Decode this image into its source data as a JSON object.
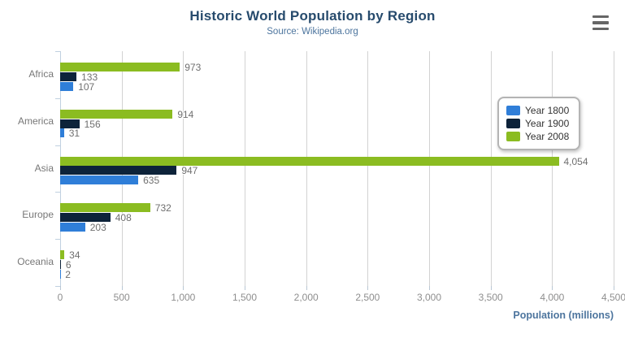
{
  "header": {
    "title": "Historic World Population by Region",
    "subtitle": "Source: Wikipedia.org"
  },
  "export_button": {
    "icon": "hamburger",
    "tooltip": "chart context menu"
  },
  "chart_data": {
    "type": "bar",
    "orientation": "horizontal",
    "title": "Historic World Population by Region",
    "subtitle": "Source: Wikipedia.org",
    "categories": [
      "Africa",
      "America",
      "Asia",
      "Europe",
      "Oceania"
    ],
    "series": [
      {
        "name": "Year 1800",
        "color": "#2f7ed8",
        "values": [
          107,
          31,
          635,
          203,
          2
        ]
      },
      {
        "name": "Year 1900",
        "color": "#0d233a",
        "values": [
          133,
          156,
          947,
          408,
          6
        ]
      },
      {
        "name": "Year 2008",
        "color": "#8bbc21",
        "values": [
          973,
          914,
          4054,
          732,
          34
        ]
      }
    ],
    "bar_visual_order_top_to_bottom": [
      "Year 2008",
      "Year 1900",
      "Year 1800"
    ],
    "data_labels_shown": true,
    "xlabel": "Population (millions)",
    "xlim": [
      0,
      4500
    ],
    "x_ticks": [
      0,
      500,
      1000,
      1500,
      2000,
      2500,
      3000,
      3500,
      4000,
      4500
    ],
    "x_tick_labels": [
      "0",
      "500",
      "1,000",
      "1,500",
      "2,000",
      "2,500",
      "3,000",
      "3,500",
      "4,000",
      "4,500"
    ],
    "grid": true,
    "legend_position": "right",
    "colors": {
      "grid_line": "#d2d2d2",
      "axis_line": "#c0d0e0",
      "title_text": "#274b6d",
      "subtitle_text": "#4d759e",
      "axis_title_text": "#4d759e",
      "tick_label_text": "#8e8e8e",
      "category_label_text": "#777777",
      "data_label_text": "#6f6f6f"
    }
  }
}
